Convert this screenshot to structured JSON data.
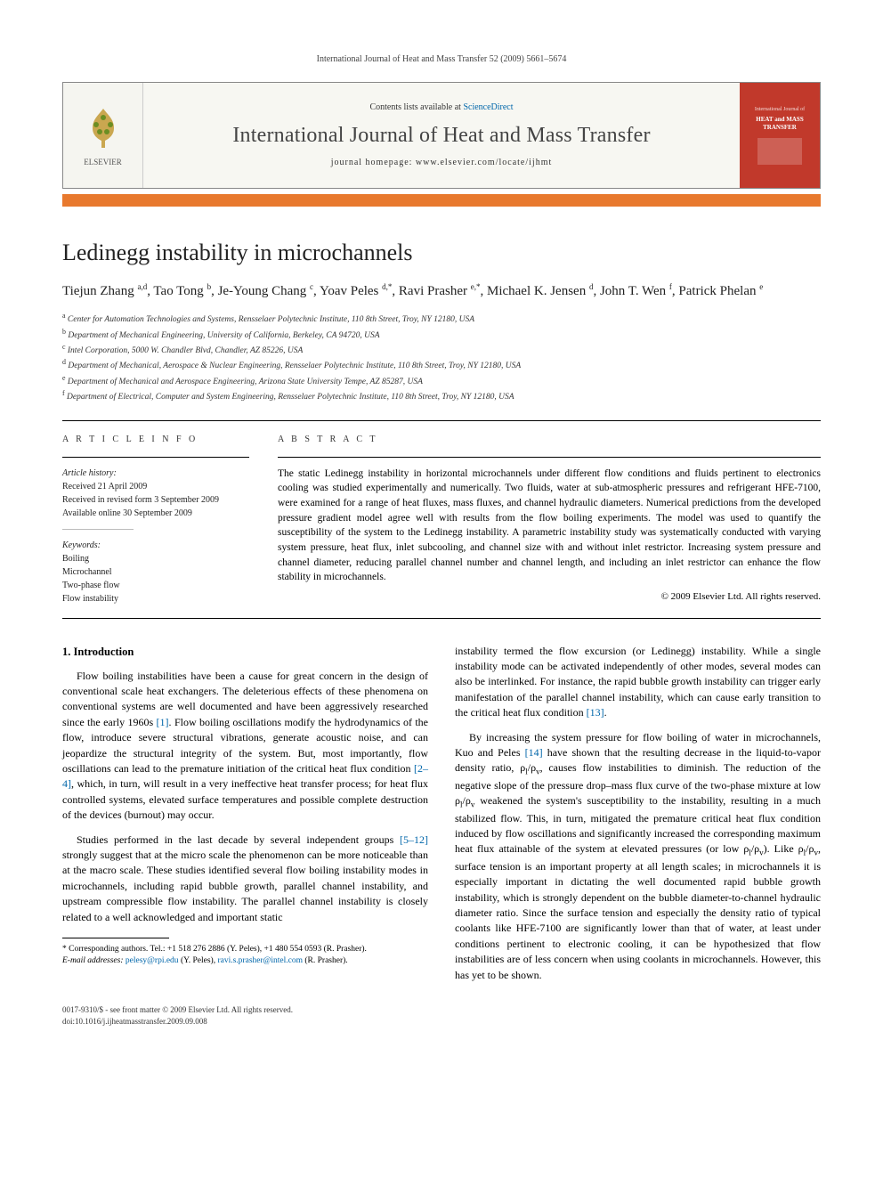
{
  "running_header": "International Journal of Heat and Mass Transfer 52 (2009) 5661–5674",
  "banner": {
    "contents_prefix": "Contents lists available at ",
    "contents_link": "ScienceDirect",
    "journal_name": "International Journal of Heat and Mass Transfer",
    "homepage_label": "journal homepage: www.elsevier.com/locate/ijhmt",
    "publisher": "ELSEVIER",
    "cover_text": "HEAT and MASS TRANSFER"
  },
  "article": {
    "title": "Ledinegg instability in microchannels",
    "authors_html": "Tiejun Zhang <sup>a,d</sup>, Tao Tong <sup>b</sup>, Je-Young Chang <sup>c</sup>, Yoav Peles <sup>d,*</sup>, Ravi Prasher <sup>e,*</sup>, Michael K. Jensen <sup>d</sup>, John T. Wen <sup>f</sup>, Patrick Phelan <sup>e</sup>",
    "affiliations": [
      {
        "sup": "a",
        "text": "Center for Automation Technologies and Systems, Rensselaer Polytechnic Institute, 110 8th Street, Troy, NY 12180, USA"
      },
      {
        "sup": "b",
        "text": "Department of Mechanical Engineering, University of California, Berkeley, CA 94720, USA"
      },
      {
        "sup": "c",
        "text": "Intel Corporation, 5000 W. Chandler Blvd, Chandler, AZ 85226, USA"
      },
      {
        "sup": "d",
        "text": "Department of Mechanical, Aerospace & Nuclear Engineering, Rensselaer Polytechnic Institute, 110 8th Street, Troy, NY 12180, USA"
      },
      {
        "sup": "e",
        "text": "Department of Mechanical and Aerospace Engineering, Arizona State University Tempe, AZ 85287, USA"
      },
      {
        "sup": "f",
        "text": "Department of Electrical, Computer and System Engineering, Rensselaer Polytechnic Institute, 110 8th Street, Troy, NY 12180, USA"
      }
    ]
  },
  "info": {
    "head": "A R T I C L E   I N F O",
    "history_label": "Article history:",
    "history": [
      "Received 21 April 2009",
      "Received in revised form 3 September 2009",
      "Available online 30 September 2009"
    ],
    "keywords_label": "Keywords:",
    "keywords": [
      "Boiling",
      "Microchannel",
      "Two-phase flow",
      "Flow instability"
    ]
  },
  "abstract": {
    "head": "A B S T R A C T",
    "text": "The static Ledinegg instability in horizontal microchannels under different flow conditions and fluids pertinent to electronics cooling was studied experimentally and numerically. Two fluids, water at sub-atmospheric pressures and refrigerant HFE-7100, were examined for a range of heat fluxes, mass fluxes, and channel hydraulic diameters. Numerical predictions from the developed pressure gradient model agree well with results from the flow boiling experiments. The model was used to quantify the susceptibility of the system to the Ledinegg instability. A parametric instability study was systematically conducted with varying system pressure, heat flux, inlet subcooling, and channel size with and without inlet restrictor. Increasing system pressure and channel diameter, reducing parallel channel number and channel length, and including an inlet restrictor can enhance the flow stability in microchannels.",
    "copyright": "© 2009 Elsevier Ltd. All rights reserved."
  },
  "body": {
    "section_title": "1. Introduction",
    "left": [
      "Flow boiling instabilities have been a cause for great concern in the design of conventional scale heat exchangers. The deleterious effects of these phenomena on conventional systems are well documented and have been aggressively researched since the early 1960s [1]. Flow boiling oscillations modify the hydrodynamics of the flow, introduce severe structural vibrations, generate acoustic noise, and can jeopardize the structural integrity of the system. But, most importantly, flow oscillations can lead to the premature initiation of the critical heat flux condition [2–4], which, in turn, will result in a very ineffective heat transfer process; for heat flux controlled systems, elevated surface temperatures and possible complete destruction of the devices (burnout) may occur.",
      "Studies performed in the last decade by several independent groups [5–12] strongly suggest that at the micro scale the phenomenon can be more noticeable than at the macro scale. These studies identified several flow boiling instability modes in microchannels, including rapid bubble growth, parallel channel instability, and upstream compressible flow instability. The parallel channel instability is closely related to a well acknowledged and important static"
    ],
    "right": [
      "instability termed the flow excursion (or Ledinegg) instability. While a single instability mode can be activated independently of other modes, several modes can also be interlinked. For instance, the rapid bubble growth instability can trigger early manifestation of the parallel channel instability, which can cause early transition to the critical heat flux condition [13].",
      "By increasing the system pressure for flow boiling of water in microchannels, Kuo and Peles [14] have shown that the resulting decrease in the liquid-to-vapor density ratio, ρl/ρv, causes flow instabilities to diminish. The reduction of the negative slope of the pressure drop–mass flux curve of the two-phase mixture at low ρl/ρv weakened the system's susceptibility to the instability, resulting in a much stabilized flow. This, in turn, mitigated the premature critical heat flux condition induced by flow oscillations and significantly increased the corresponding maximum heat flux attainable of the system at elevated pressures (or low ρl/ρv). Like ρl/ρv, surface tension is an important property at all length scales; in microchannels it is especially important in dictating the well documented rapid bubble growth instability, which is strongly dependent on the bubble diameter-to-channel hydraulic diameter ratio. Since the surface tension and especially the density ratio of typical coolants like HFE-7100 are significantly lower than that of water, at least under conditions pertinent to electronic cooling, it can be hypothesized that flow instabilities are of less concern when using coolants in microchannels. However, this has yet to be shown."
    ]
  },
  "footnotes": {
    "corr": "* Corresponding authors. Tel.: +1 518 276 2886 (Y. Peles), +1 480 554 0593 (R. Prasher).",
    "email_label": "E-mail addresses:",
    "emails": [
      {
        "addr": "pelesy@rpi.edu",
        "who": "(Y. Peles),"
      },
      {
        "addr": "ravi.s.prasher@intel.com",
        "who": "(R. Prasher)."
      }
    ]
  },
  "footer": {
    "issn": "0017-9310/$ - see front matter © 2009 Elsevier Ltd. All rights reserved.",
    "doi": "doi:10.1016/j.ijheatmasstransfer.2009.09.008"
  },
  "colors": {
    "orange_bar": "#e8792e",
    "cover_bg": "#c1392b",
    "link": "#0066aa"
  }
}
